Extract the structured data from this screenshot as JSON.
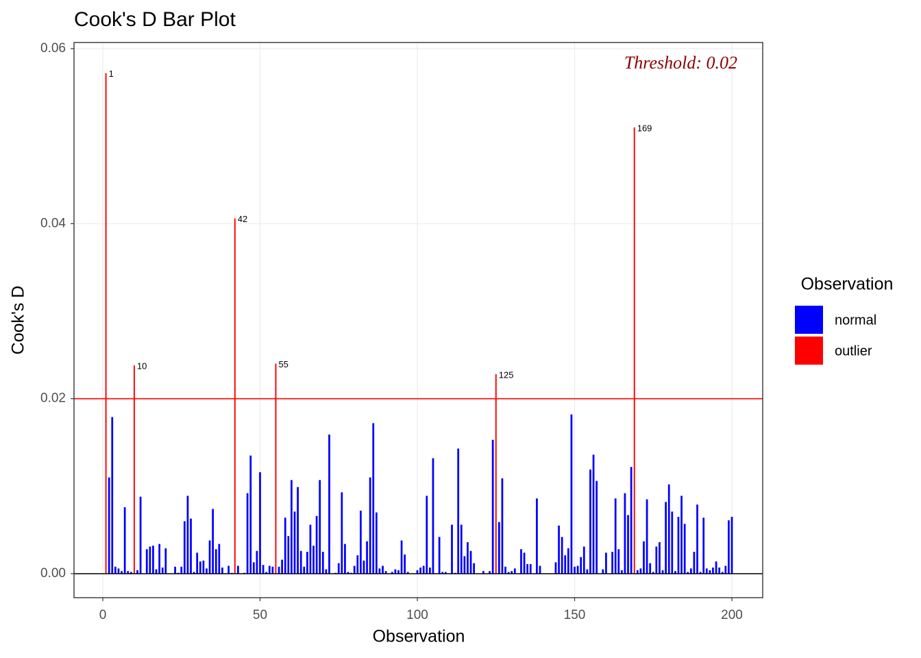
{
  "chart_data": {
    "type": "bar",
    "title": "Cook's D Bar Plot",
    "x_label": "Observation",
    "y_label": "Cook's D",
    "annotation": "Threshold: 0.02",
    "threshold": 0.02,
    "threshold_color": "#ff0000",
    "legend_title": "Observation",
    "legend_position": "right",
    "grid": true,
    "xlim": [
      -9.15,
      209.8
    ],
    "ylim": [
      -0.00274,
      0.0607
    ],
    "xticks": [
      0,
      50,
      100,
      150,
      200
    ],
    "yticks": [
      {
        "value": 0,
        "label": "0.00"
      },
      {
        "value": 0.02,
        "label": "0.02"
      },
      {
        "value": 0.04,
        "label": "0.04"
      },
      {
        "value": 0.06,
        "label": "0.06"
      }
    ],
    "series": [
      {
        "name": "normal",
        "color": "#0000ff",
        "x": [
          2,
          3,
          4,
          5,
          6,
          7,
          8,
          9,
          11,
          12,
          13,
          14,
          15,
          16,
          17,
          18,
          19,
          20,
          21,
          22,
          23,
          24,
          25,
          26,
          27,
          28,
          29,
          30,
          31,
          32,
          33,
          34,
          35,
          36,
          37,
          38,
          39,
          40,
          41,
          43,
          44,
          45,
          46,
          47,
          48,
          49,
          50,
          51,
          52,
          53,
          54,
          56,
          57,
          58,
          59,
          60,
          61,
          62,
          63,
          64,
          65,
          66,
          67,
          68,
          69,
          70,
          71,
          72,
          73,
          74,
          75,
          76,
          77,
          78,
          79,
          80,
          81,
          82,
          83,
          84,
          85,
          86,
          87,
          88,
          89,
          90,
          91,
          92,
          93,
          94,
          95,
          96,
          97,
          98,
          99,
          100,
          101,
          102,
          103,
          104,
          105,
          106,
          107,
          108,
          109,
          110,
          111,
          112,
          113,
          114,
          115,
          116,
          117,
          118,
          119,
          120,
          121,
          122,
          123,
          124,
          126,
          127,
          128,
          129,
          130,
          131,
          132,
          133,
          134,
          135,
          136,
          137,
          138,
          139,
          140,
          141,
          142,
          143,
          144,
          145,
          146,
          147,
          148,
          149,
          150,
          151,
          152,
          153,
          154,
          155,
          156,
          157,
          158,
          159,
          160,
          161,
          162,
          163,
          164,
          165,
          166,
          167,
          168,
          170,
          171,
          172,
          173,
          174,
          175,
          176,
          177,
          178,
          179,
          180,
          181,
          182,
          183,
          184,
          185,
          186,
          187,
          188,
          189,
          190,
          191,
          192,
          193,
          194,
          195,
          196,
          197,
          198,
          199,
          200
        ],
        "values": [
          0.011,
          0.0179,
          0.0008,
          0.0006,
          0.0003,
          0.0076,
          0.0003,
          0.0002,
          0.0004,
          0.0088,
          0,
          0.0028,
          0.0031,
          0.0032,
          0.0005,
          0.0034,
          0.0007,
          0.0029,
          0,
          0,
          0.0008,
          0.0001,
          0.0008,
          0.006,
          0.0089,
          0.0063,
          0.0002,
          0.0024,
          0.0014,
          0.0015,
          0.0006,
          0.0038,
          0.0074,
          0.0028,
          0.0034,
          0.0007,
          0,
          0.0009,
          0.0001,
          0.0009,
          0,
          0.0001,
          0.0092,
          0.0135,
          0.0013,
          0.0026,
          0.0116,
          0.001,
          0.0002,
          0.0009,
          0.0008,
          0.0008,
          0.0016,
          0.0064,
          0.0043,
          0.0107,
          0.0071,
          0.0099,
          0.0026,
          0.0008,
          0.0025,
          0.0056,
          0.0032,
          0.0066,
          0.0107,
          0.0025,
          0.0005,
          0.0159,
          0,
          0.0001,
          0.0012,
          0.0093,
          0.0034,
          0.0002,
          0.0001,
          0.0009,
          0.0021,
          0.0072,
          0.0015,
          0.0037,
          0.011,
          0.0172,
          0.007,
          0.0006,
          0.0009,
          0.0003,
          0,
          0.0002,
          0.0005,
          0.0004,
          0.0038,
          0.0022,
          0.0002,
          0,
          0,
          0.0004,
          0.0007,
          0.0009,
          0.0089,
          0.0007,
          0.0132,
          0,
          0.0042,
          0.0002,
          0.0002,
          0,
          0.0056,
          0.0001,
          0.0143,
          0.0056,
          0.002,
          0.0036,
          0.0026,
          0.0012,
          0,
          0,
          0.0003,
          0,
          0.0003,
          0.0153,
          0.0059,
          0.0109,
          0.0008,
          0.0002,
          0.0003,
          0.0006,
          0,
          0.0028,
          0.0024,
          0.0011,
          0.0011,
          0,
          0.0086,
          0.0009,
          0,
          0,
          0,
          0,
          0.0013,
          0.0055,
          0.0042,
          0.0021,
          0.0029,
          0.0182,
          0.0008,
          0.0009,
          0.0019,
          0.0031,
          0.0005,
          0.0119,
          0.0136,
          0.0106,
          0,
          0.0005,
          0.0024,
          0,
          0.0025,
          0.0086,
          0.0028,
          0.0004,
          0.0092,
          0.0067,
          0.0122,
          0.0004,
          0.0006,
          0.0037,
          0.0085,
          0.0012,
          0.0002,
          0.0031,
          0.0036,
          0.0004,
          0.0082,
          0.0102,
          0.0071,
          0.0003,
          0.0065,
          0.0089,
          0.0057,
          0.0002,
          0.0006,
          0.0025,
          0.0079,
          0.0002,
          0.0064,
          0.0006,
          0.0004,
          0.0007,
          0.0014,
          0.0007,
          0.0002,
          0.0009,
          0.0061,
          0.0065
        ]
      },
      {
        "name": "outlier",
        "color": "#ff0000",
        "x": [
          1,
          10,
          42,
          55,
          125,
          169
        ],
        "values": [
          0.0572,
          0.0238,
          0.0406,
          0.024,
          0.0228,
          0.051
        ]
      }
    ]
  }
}
